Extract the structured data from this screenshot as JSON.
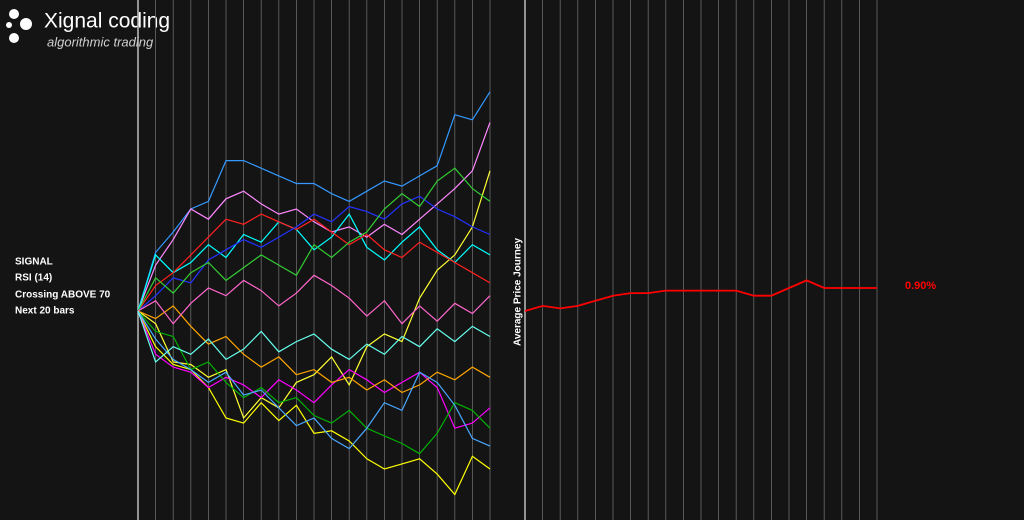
{
  "header": {
    "brand": "Xignal coding",
    "tagline": "algorithmic trading"
  },
  "signal": {
    "title": "SIGNAL",
    "lines": [
      "RSI (14)",
      "Crossing ABOVE 70",
      "Next 20 bars"
    ]
  },
  "chart_data": [
    {
      "type": "line",
      "grid": true,
      "ylim": [
        -8.2,
        12.2
      ],
      "series": [
        {
          "color": "#3399ff",
          "values": [
            0,
            2.3,
            3.1,
            4.0,
            4.3,
            5.9,
            5.9,
            5.6,
            5.3,
            5.0,
            5.0,
            4.6,
            4.3,
            4.7,
            5.1,
            4.9,
            5.3,
            5.7,
            7.7,
            7.5,
            8.6
          ]
        },
        {
          "color": "#ff88ff",
          "values": [
            0,
            1.8,
            2.8,
            4.0,
            3.6,
            4.4,
            4.7,
            4.2,
            3.8,
            4.0,
            3.5,
            3.1,
            3.3,
            2.9,
            3.4,
            3.0,
            3.6,
            4.2,
            4.8,
            5.5,
            7.4
          ]
        },
        {
          "color": "#ffff00",
          "values": [
            0,
            -1.4,
            -2.1,
            -2.3,
            -3.0,
            -4.2,
            -4.4,
            -3.6,
            -4.3,
            -3.7,
            -4.8,
            -4.7,
            -5.1,
            -5.8,
            -6.2,
            -6.0,
            -5.8,
            -6.4,
            -7.2,
            -5.7,
            -6.2
          ]
        },
        {
          "color": "#ffff33",
          "values": [
            0,
            -0.5,
            -2.0,
            -2.1,
            -2.6,
            -2.3,
            -4.2,
            -3.4,
            -3.8,
            -2.8,
            -2.5,
            -1.8,
            -2.9,
            -1.4,
            -0.9,
            -1.2,
            0.5,
            1.6,
            2.2,
            3.3,
            5.5
          ]
        },
        {
          "color": "#00ffff",
          "values": [
            0,
            2.2,
            1.5,
            1.9,
            2.6,
            2.1,
            3.0,
            2.7,
            3.5,
            3.2,
            2.4,
            2.9,
            3.8,
            2.5,
            2.0,
            2.7,
            3.3,
            2.4,
            1.9,
            2.6,
            2.2
          ]
        },
        {
          "color": "#ff00ff",
          "values": [
            0,
            -1.7,
            -2.2,
            -2.4,
            -3.0,
            -2.6,
            -2.9,
            -3.4,
            -2.7,
            -3.1,
            -3.6,
            -2.9,
            -2.3,
            -2.7,
            -3.2,
            -2.8,
            -2.4,
            -3.0,
            -4.6,
            -4.4,
            -3.8
          ]
        },
        {
          "color": "#ff2020",
          "values": [
            0,
            1.0,
            1.5,
            2.2,
            2.9,
            3.6,
            3.4,
            3.8,
            3.5,
            3.2,
            3.6,
            3.1,
            2.6,
            3.0,
            2.4,
            2.1,
            2.7,
            2.3,
            1.9,
            1.5,
            1.1
          ]
        },
        {
          "color": "#00b000",
          "values": [
            0,
            -0.8,
            -1.0,
            -2.3,
            -2.0,
            -2.8,
            -3.4,
            -3.0,
            -3.6,
            -3.4,
            -4.1,
            -4.4,
            -3.9,
            -4.6,
            -4.9,
            -5.2,
            -5.6,
            -4.8,
            -3.6,
            -3.9,
            -4.6
          ]
        },
        {
          "color": "#2233ff",
          "values": [
            0,
            0.6,
            1.3,
            1.1,
            2.0,
            2.4,
            2.8,
            2.5,
            2.9,
            3.3,
            3.8,
            3.5,
            4.1,
            3.9,
            3.6,
            4.2,
            4.5,
            4.0,
            3.7,
            3.3,
            3.0
          ]
        },
        {
          "color": "#ffa500",
          "values": [
            0,
            -0.3,
            0.2,
            -0.6,
            -1.3,
            -1.0,
            -1.7,
            -2.2,
            -1.8,
            -2.5,
            -2.3,
            -2.8,
            -2.6,
            -3.1,
            -2.7,
            -3.2,
            -2.9,
            -2.4,
            -2.7,
            -2.2,
            -2.6
          ]
        },
        {
          "color": "#4aa8ff",
          "values": [
            0,
            -1.1,
            -1.9,
            -2.3,
            -2.8,
            -2.4,
            -3.3,
            -3.1,
            -3.8,
            -4.5,
            -4.2,
            -5.0,
            -5.4,
            -4.6,
            -3.6,
            -3.9,
            -2.4,
            -2.8,
            -3.7,
            -5.0,
            -5.3
          ]
        },
        {
          "color": "#33cc33",
          "values": [
            0,
            1.3,
            0.7,
            1.5,
            1.9,
            1.2,
            1.7,
            2.2,
            1.8,
            1.4,
            2.6,
            2.1,
            2.7,
            3.1,
            4.0,
            4.6,
            4.1,
            5.1,
            5.6,
            4.8,
            4.3
          ]
        },
        {
          "color": "#ff66cc",
          "values": [
            0,
            0.4,
            -0.5,
            0.3,
            0.9,
            0.6,
            1.2,
            0.8,
            0.2,
            0.7,
            1.4,
            1.0,
            0.5,
            -0.2,
            0.4,
            -0.5,
            0.2,
            -0.4,
            0.3,
            -0.1,
            0.6
          ]
        },
        {
          "color": "#66ffee",
          "values": [
            0,
            -2.0,
            -1.4,
            -1.7,
            -1.1,
            -1.9,
            -1.5,
            -0.8,
            -1.6,
            -1.2,
            -0.9,
            -1.5,
            -1.9,
            -1.3,
            -1.7,
            -1.0,
            -1.4,
            -0.7,
            -1.2,
            -0.6,
            -1.0
          ]
        }
      ]
    },
    {
      "type": "line",
      "grid": true,
      "ylim": [
        -8.2,
        12.2
      ],
      "ylabel": "Average Price Journey",
      "series": [
        {
          "color": "#ff0000",
          "values": [
            0,
            0.2,
            0.1,
            0.2,
            0.4,
            0.6,
            0.7,
            0.7,
            0.8,
            0.8,
            0.8,
            0.8,
            0.8,
            0.6,
            0.6,
            0.9,
            1.2,
            0.9,
            0.9,
            0.9,
            0.9
          ],
          "value_labels": [
            null,
            null,
            null,
            null,
            null,
            null,
            null,
            null,
            null,
            null,
            null,
            null,
            null,
            null,
            null,
            null,
            null,
            null,
            null,
            null,
            "0.90%"
          ]
        }
      ]
    }
  ]
}
